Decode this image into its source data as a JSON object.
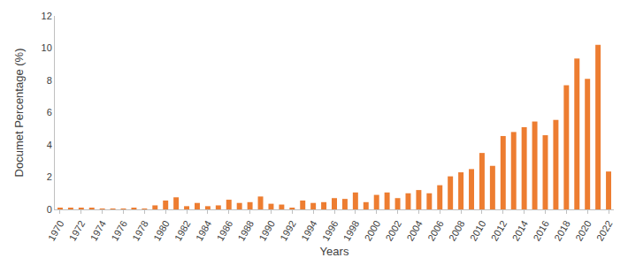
{
  "chart_data": {
    "type": "bar",
    "x_label": "Years",
    "y_label": "Documet Percentage (%)",
    "x": [
      1970,
      1971,
      1972,
      1973,
      1974,
      1975,
      1976,
      1977,
      1978,
      1979,
      1980,
      1981,
      1982,
      1983,
      1984,
      1985,
      1986,
      1987,
      1988,
      1989,
      1990,
      1991,
      1992,
      1993,
      1994,
      1995,
      1996,
      1997,
      1998,
      1999,
      2000,
      2001,
      2002,
      2003,
      2004,
      2005,
      2006,
      2007,
      2008,
      2009,
      2010,
      2011,
      2012,
      2013,
      2014,
      2015,
      2016,
      2017,
      2018,
      2019,
      2020,
      2021,
      2022
    ],
    "values": [
      0.1,
      0.1,
      0.1,
      0.1,
      0.05,
      0.05,
      0.05,
      0.1,
      0.05,
      0.25,
      0.55,
      0.75,
      0.2,
      0.4,
      0.2,
      0.25,
      0.6,
      0.4,
      0.45,
      0.8,
      0.35,
      0.3,
      0.1,
      0.55,
      0.4,
      0.45,
      0.7,
      0.65,
      1.05,
      0.45,
      0.9,
      1.05,
      0.7,
      1.0,
      1.2,
      1.0,
      1.5,
      2.05,
      2.3,
      2.5,
      3.5,
      2.7,
      4.55,
      4.8,
      5.1,
      5.45,
      4.6,
      5.55,
      7.7,
      9.35,
      8.1,
      10.2,
      2.35
    ],
    "color": "#ed7d31",
    "xlim": [
      1969.5,
      2022.5
    ],
    "xticks": [
      1970,
      1972,
      1974,
      1976,
      1978,
      1980,
      1982,
      1984,
      1986,
      1988,
      1990,
      1992,
      1994,
      1996,
      1998,
      2000,
      2002,
      2004,
      2006,
      2008,
      2010,
      2012,
      2014,
      2016,
      2018,
      2020,
      2022
    ],
    "ylim": [
      0,
      12
    ],
    "yticks": [
      0,
      2,
      4,
      6,
      8,
      10,
      12
    ],
    "grid": false
  }
}
